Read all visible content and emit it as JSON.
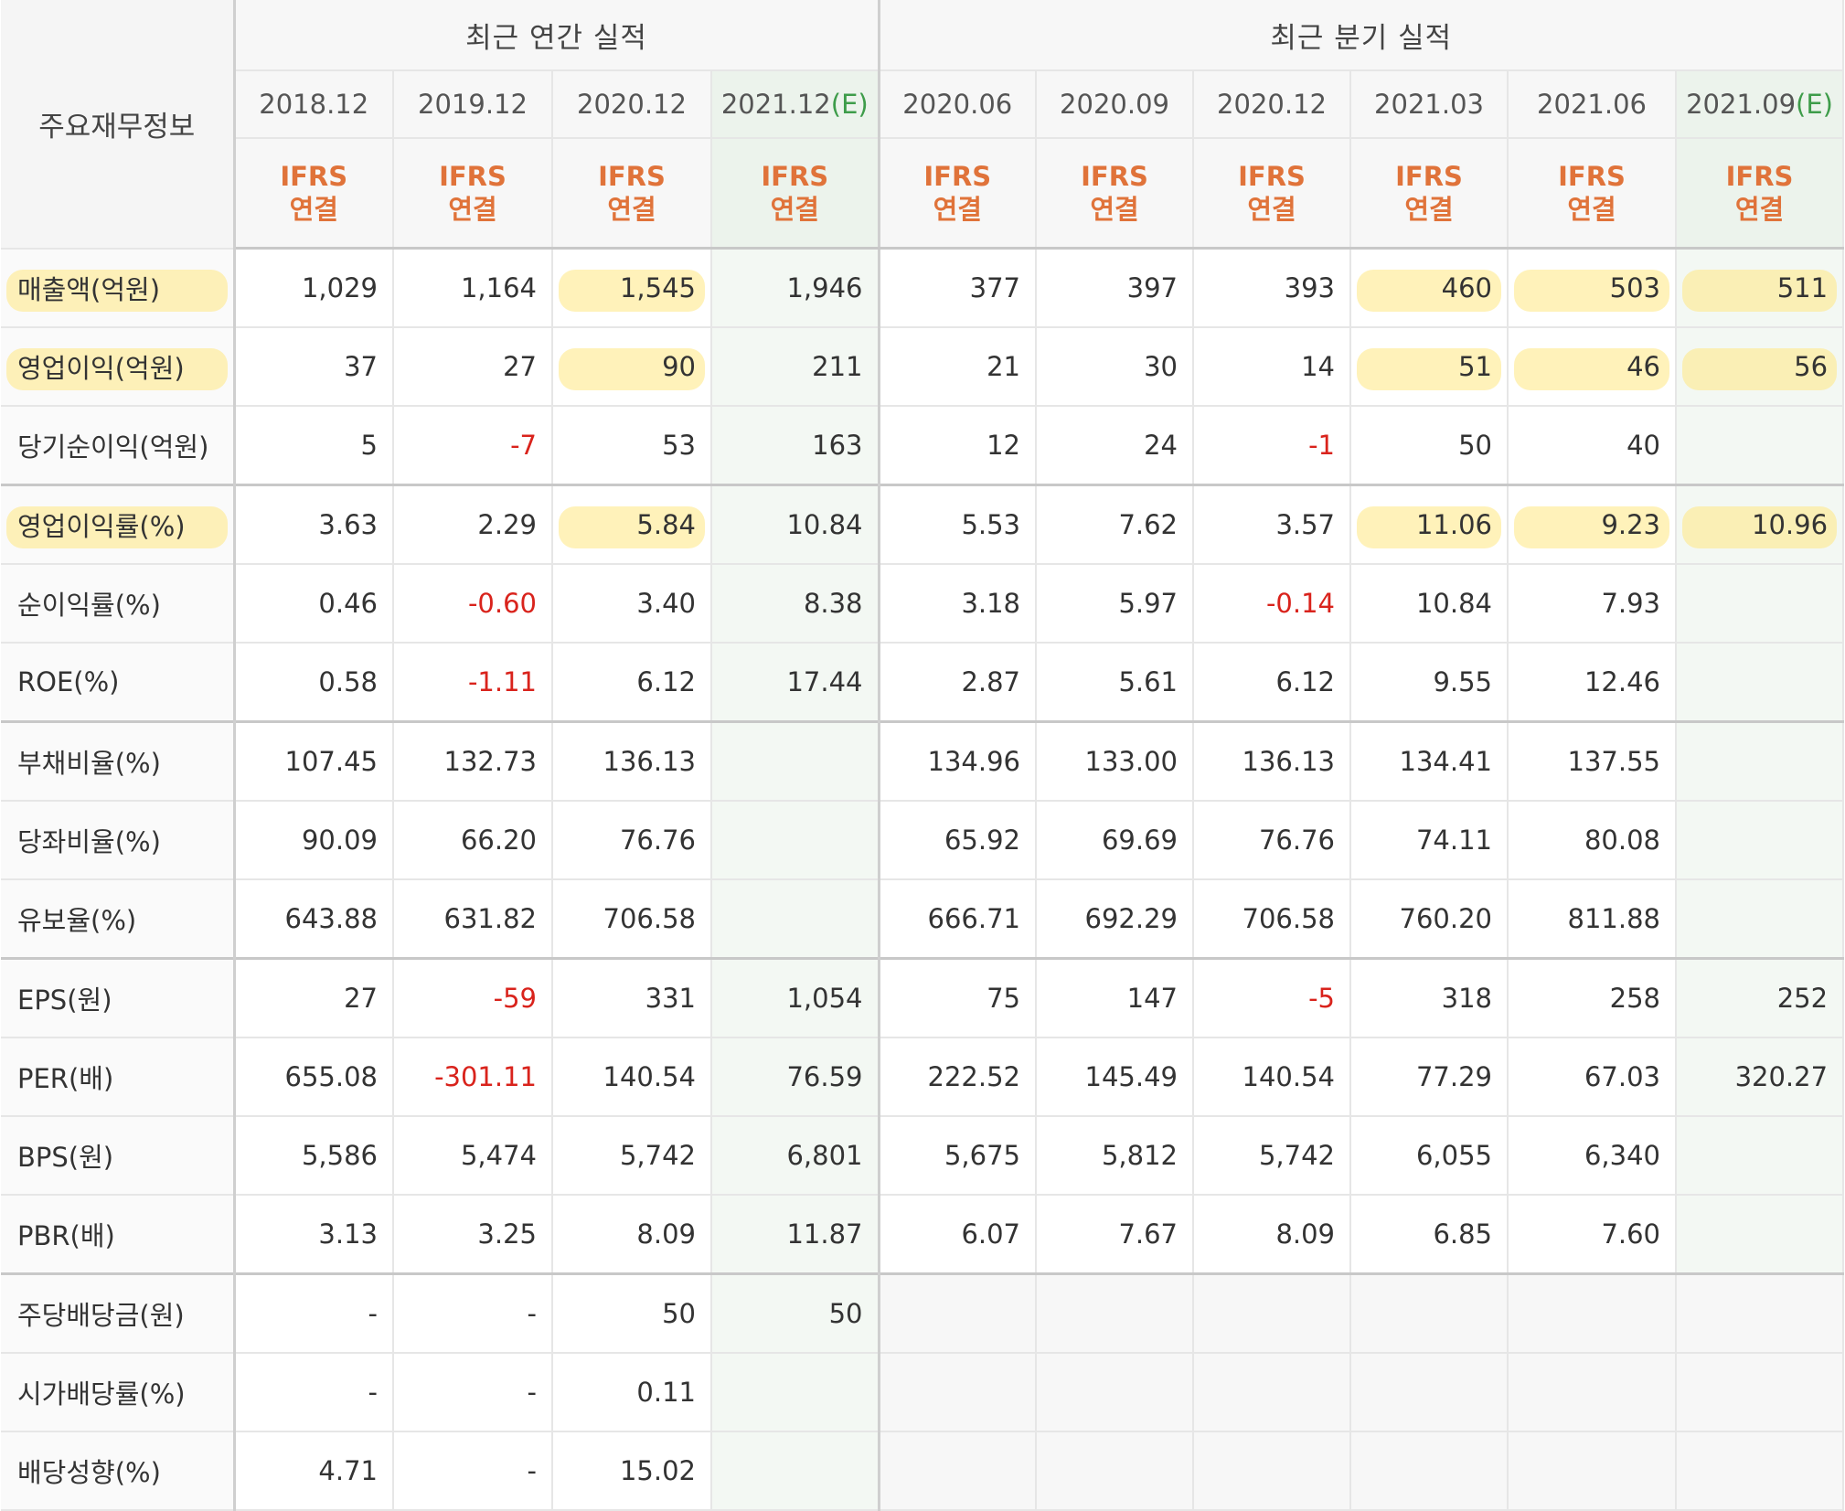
{
  "table": {
    "corner_label": "주요재무정보",
    "groups": {
      "annual": "최근 연간 실적",
      "quarterly": "최근 분기 실적"
    },
    "estimate_tag": "(E)",
    "ifrs_top": "IFRS",
    "ifrs_bottom": "연결",
    "periods": [
      {
        "label": "2018.12",
        "estimate": false,
        "group": "annual"
      },
      {
        "label": "2019.12",
        "estimate": false,
        "group": "annual"
      },
      {
        "label": "2020.12",
        "estimate": false,
        "group": "annual"
      },
      {
        "label": "2021.12",
        "estimate": true,
        "group": "annual"
      },
      {
        "label": "2020.06",
        "estimate": false,
        "group": "quarterly"
      },
      {
        "label": "2020.09",
        "estimate": false,
        "group": "quarterly"
      },
      {
        "label": "2020.12",
        "estimate": false,
        "group": "quarterly"
      },
      {
        "label": "2021.03",
        "estimate": false,
        "group": "quarterly"
      },
      {
        "label": "2021.06",
        "estimate": false,
        "group": "quarterly"
      },
      {
        "label": "2021.09",
        "estimate": true,
        "group": "quarterly"
      }
    ],
    "rows": [
      {
        "label": "매출액(억원)",
        "values": [
          "1,029",
          "1,164",
          "1,545",
          "1,946",
          "377",
          "397",
          "393",
          "460",
          "503",
          "511"
        ],
        "highlight": [
          2,
          7,
          8,
          9
        ],
        "label_highlight": true
      },
      {
        "label": "영업이익(억원)",
        "values": [
          "37",
          "27",
          "90",
          "211",
          "21",
          "30",
          "14",
          "51",
          "46",
          "56"
        ],
        "highlight": [
          2,
          7,
          8,
          9
        ],
        "label_highlight": true
      },
      {
        "label": "당기순이익(억원)",
        "values": [
          "5",
          "-7",
          "53",
          "163",
          "12",
          "24",
          "-1",
          "50",
          "40",
          ""
        ],
        "highlight": [],
        "label_highlight": false
      },
      {
        "label": "영업이익률(%)",
        "values": [
          "3.63",
          "2.29",
          "5.84",
          "10.84",
          "5.53",
          "7.62",
          "3.57",
          "11.06",
          "9.23",
          "10.96"
        ],
        "highlight": [
          2,
          7,
          8,
          9
        ],
        "label_highlight": true,
        "separator": true
      },
      {
        "label": "순이익률(%)",
        "values": [
          "0.46",
          "-0.60",
          "3.40",
          "8.38",
          "3.18",
          "5.97",
          "-0.14",
          "10.84",
          "7.93",
          ""
        ],
        "highlight": [],
        "label_highlight": false
      },
      {
        "label": "ROE(%)",
        "values": [
          "0.58",
          "-1.11",
          "6.12",
          "17.44",
          "2.87",
          "5.61",
          "6.12",
          "9.55",
          "12.46",
          ""
        ],
        "highlight": [],
        "label_highlight": false
      },
      {
        "label": "부채비율(%)",
        "values": [
          "107.45",
          "132.73",
          "136.13",
          "",
          "134.96",
          "133.00",
          "136.13",
          "134.41",
          "137.55",
          ""
        ],
        "highlight": [],
        "label_highlight": false,
        "separator": true
      },
      {
        "label": "당좌비율(%)",
        "values": [
          "90.09",
          "66.20",
          "76.76",
          "",
          "65.92",
          "69.69",
          "76.76",
          "74.11",
          "80.08",
          ""
        ],
        "highlight": [],
        "label_highlight": false
      },
      {
        "label": "유보율(%)",
        "values": [
          "643.88",
          "631.82",
          "706.58",
          "",
          "666.71",
          "692.29",
          "706.58",
          "760.20",
          "811.88",
          ""
        ],
        "highlight": [],
        "label_highlight": false
      },
      {
        "label": "EPS(원)",
        "values": [
          "27",
          "-59",
          "331",
          "1,054",
          "75",
          "147",
          "-5",
          "318",
          "258",
          "252"
        ],
        "highlight": [],
        "label_highlight": false,
        "separator": true
      },
      {
        "label": "PER(배)",
        "values": [
          "655.08",
          "-301.11",
          "140.54",
          "76.59",
          "222.52",
          "145.49",
          "140.54",
          "77.29",
          "67.03",
          "320.27"
        ],
        "highlight": [],
        "label_highlight": false
      },
      {
        "label": "BPS(원)",
        "values": [
          "5,586",
          "5,474",
          "5,742",
          "6,801",
          "5,675",
          "5,812",
          "5,742",
          "6,055",
          "6,340",
          ""
        ],
        "highlight": [],
        "label_highlight": false
      },
      {
        "label": "PBR(배)",
        "values": [
          "3.13",
          "3.25",
          "8.09",
          "11.87",
          "6.07",
          "7.67",
          "8.09",
          "6.85",
          "7.60",
          ""
        ],
        "highlight": [],
        "label_highlight": false
      },
      {
        "label": "주당배당금(원)",
        "values": [
          "-",
          "-",
          "50",
          "50",
          "",
          "",
          "",
          "",
          "",
          ""
        ],
        "highlight": [],
        "label_highlight": false,
        "separator": true,
        "gray_quarterly": true
      },
      {
        "label": "시가배당률(%)",
        "values": [
          "-",
          "-",
          "0.11",
          "",
          "",
          "",
          "",
          "",
          "",
          ""
        ],
        "highlight": [],
        "label_highlight": false,
        "gray_quarterly": true
      },
      {
        "label": "배당성향(%)",
        "values": [
          "4.71",
          "-",
          "15.02",
          "",
          "",
          "",
          "",
          "",
          "",
          ""
        ],
        "highlight": [],
        "label_highlight": false,
        "gray_quarterly": true
      }
    ]
  },
  "colors": {
    "negative": "#d9231c",
    "ifrs": "#e0733a",
    "estimate": "#3e9c4a",
    "highlight": "#ffe882"
  }
}
